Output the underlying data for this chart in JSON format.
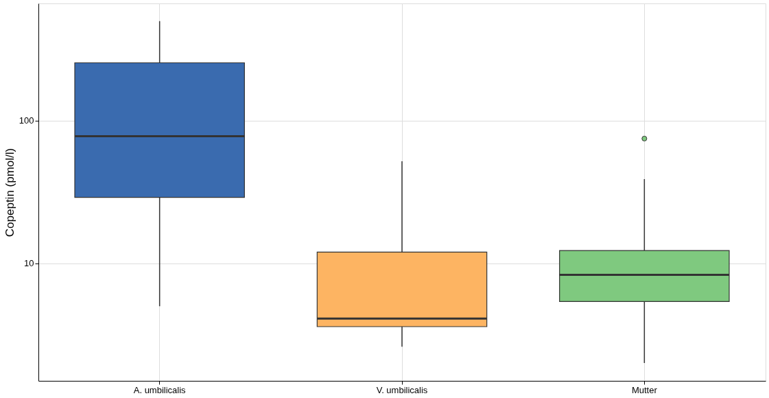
{
  "chart_data": {
    "type": "box",
    "ylabel": "Copeptin (pmol/l)",
    "categories": [
      "A. umbilicalis",
      "V. umbilicalis",
      "Mutter"
    ],
    "colors": [
      "#3a6baf",
      "#fdb462",
      "#7fc97f"
    ],
    "boxes": [
      {
        "low": 5,
        "q1": 29,
        "median": 78,
        "q3": 255,
        "high": 500
      },
      {
        "low": 2.6,
        "q1": 3.6,
        "median": 4.1,
        "q3": 12,
        "high": 52
      },
      {
        "low": 2,
        "q1": 5.4,
        "median": 8.3,
        "q3": 12.3,
        "high": 39,
        "outliers": [
          75
        ]
      }
    ],
    "ylim": [
      1.5,
      665
    ],
    "yticks": [
      10,
      100
    ],
    "log": true,
    "grid": true
  }
}
